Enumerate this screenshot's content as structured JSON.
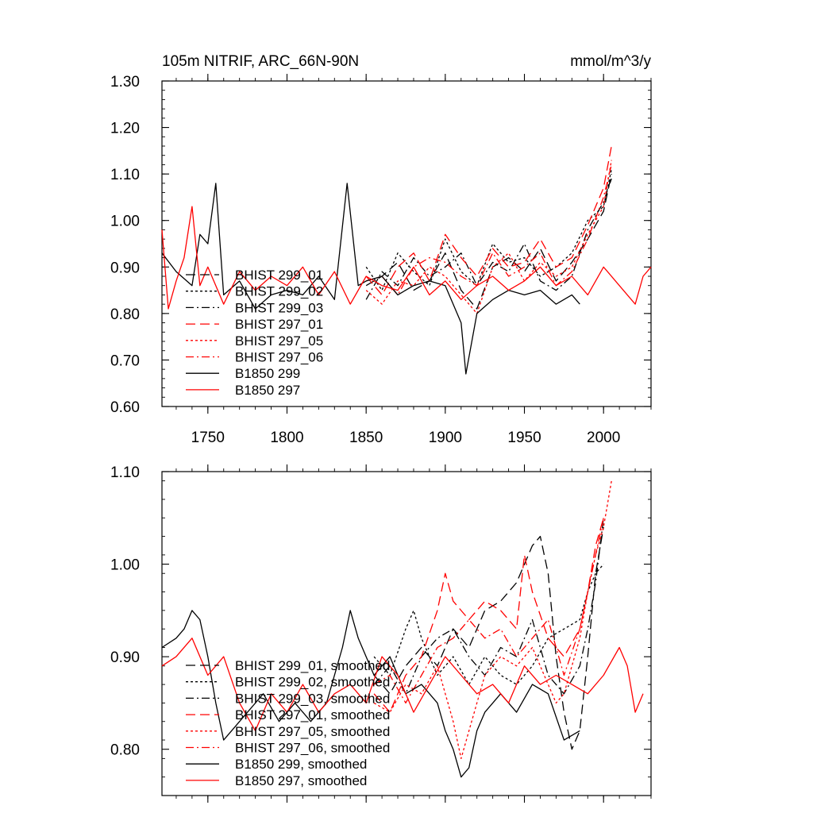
{
  "chart_data": [
    {
      "type": "line",
      "title": "105m NITRIF, ARC_66N-90N",
      "units": "mmol/m^3/y",
      "xlabel": "",
      "ylabel": "",
      "xlim": [
        1721,
        2030
      ],
      "ylim": [
        0.6,
        1.3
      ],
      "xticks": [
        1750,
        1800,
        1850,
        1900,
        1950,
        2000
      ],
      "yticks": [
        0.6,
        0.7,
        0.8,
        0.9,
        1.0,
        1.1,
        1.2,
        1.3
      ],
      "xtick_labels": [
        "1750",
        "1800",
        "1850",
        "1900",
        "1950",
        "2000"
      ],
      "ytick_labels": [
        "0.60",
        "0.70",
        "0.80",
        "0.90",
        "1.00",
        "1.10",
        "1.20",
        "1.30"
      ],
      "legend_position": "bottom-left",
      "series": [
        {
          "name": "BHIST 299_01",
          "color": "#000000",
          "dash": "long-dash",
          "x": [
            1850,
            1860,
            1870,
            1880,
            1890,
            1900,
            1910,
            1920,
            1930,
            1940,
            1950,
            1960,
            1970,
            1980,
            1990,
            2000,
            2005
          ],
          "y": [
            0.86,
            0.88,
            0.91,
            0.85,
            0.87,
            0.93,
            0.85,
            0.81,
            0.9,
            0.92,
            0.89,
            0.94,
            0.87,
            0.91,
            0.96,
            1.02,
            1.1
          ]
        },
        {
          "name": "BHIST 299_02",
          "color": "#000000",
          "dash": "dot",
          "x": [
            1850,
            1860,
            1870,
            1880,
            1890,
            1900,
            1910,
            1920,
            1930,
            1940,
            1950,
            1960,
            1970,
            1980,
            1990,
            2000,
            2005
          ],
          "y": [
            0.9,
            0.85,
            0.93,
            0.89,
            0.86,
            0.96,
            0.89,
            0.86,
            0.95,
            0.91,
            0.92,
            0.88,
            0.9,
            0.93,
            1.0,
            1.03,
            1.11
          ]
        },
        {
          "name": "BHIST 299_03",
          "color": "#000000",
          "dash": "dash-dot",
          "x": [
            1850,
            1860,
            1870,
            1880,
            1890,
            1900,
            1910,
            1920,
            1930,
            1940,
            1950,
            1960,
            1970,
            1980,
            1990,
            2000,
            2005
          ],
          "y": [
            0.83,
            0.89,
            0.86,
            0.92,
            0.88,
            0.9,
            0.93,
            0.86,
            0.91,
            0.89,
            0.95,
            0.87,
            0.85,
            0.88,
            0.98,
            1.04,
            1.09
          ]
        },
        {
          "name": "BHIST 297_01",
          "color": "#ff0000",
          "dash": "long-dash",
          "x": [
            1850,
            1860,
            1870,
            1880,
            1890,
            1900,
            1910,
            1920,
            1930,
            1940,
            1950,
            1960,
            1970,
            1980,
            1990,
            2000,
            2005
          ],
          "y": [
            0.88,
            0.84,
            0.9,
            0.93,
            0.87,
            0.97,
            0.92,
            0.88,
            0.94,
            0.9,
            0.91,
            0.96,
            0.9,
            0.92,
            0.99,
            1.07,
            1.16
          ]
        },
        {
          "name": "BHIST 297_05",
          "color": "#ff0000",
          "dash": "dot",
          "x": [
            1850,
            1860,
            1870,
            1880,
            1890,
            1900,
            1910,
            1920,
            1930,
            1940,
            1950,
            1960,
            1970,
            1980,
            1990,
            2000,
            2005
          ],
          "y": [
            0.85,
            0.82,
            0.87,
            0.86,
            0.9,
            0.88,
            0.84,
            0.8,
            0.9,
            0.93,
            0.87,
            0.91,
            0.88,
            0.9,
            0.97,
            1.03,
            1.13
          ]
        },
        {
          "name": "BHIST 297_06",
          "color": "#ff0000",
          "dash": "dash-dot",
          "x": [
            1850,
            1860,
            1870,
            1880,
            1890,
            1900,
            1910,
            1920,
            1930,
            1940,
            1950,
            1960,
            1970,
            1980,
            1990,
            2000,
            2005
          ],
          "y": [
            0.87,
            0.88,
            0.84,
            0.9,
            0.92,
            0.91,
            0.88,
            0.86,
            0.93,
            0.88,
            0.9,
            0.93,
            0.86,
            0.89,
            0.96,
            1.05,
            1.12
          ]
        },
        {
          "name": "B1850 299",
          "color": "#000000",
          "dash": "solid",
          "x": [
            1721,
            1730,
            1740,
            1745,
            1750,
            1755,
            1760,
            1770,
            1780,
            1790,
            1800,
            1810,
            1820,
            1830,
            1838,
            1845,
            1850,
            1860,
            1870,
            1880,
            1890,
            1900,
            1910,
            1913,
            1920,
            1930,
            1940,
            1950,
            1960,
            1970,
            1980,
            1985
          ],
          "y": [
            0.93,
            0.89,
            0.86,
            0.97,
            0.95,
            1.08,
            0.84,
            0.87,
            0.81,
            0.84,
            0.85,
            0.84,
            0.88,
            0.83,
            1.08,
            0.86,
            0.87,
            0.88,
            0.84,
            0.86,
            0.87,
            0.86,
            0.78,
            0.67,
            0.8,
            0.83,
            0.85,
            0.84,
            0.85,
            0.82,
            0.84,
            0.82
          ]
        },
        {
          "name": "B1850 297",
          "color": "#ff0000",
          "dash": "solid",
          "x": [
            1721,
            1725,
            1730,
            1735,
            1740,
            1745,
            1750,
            1760,
            1770,
            1780,
            1790,
            1800,
            1810,
            1820,
            1830,
            1840,
            1850,
            1860,
            1870,
            1880,
            1890,
            1900,
            1910,
            1920,
            1930,
            1940,
            1950,
            1960,
            1970,
            1980,
            1990,
            2000,
            2010,
            2020,
            2025,
            2030
          ],
          "y": [
            0.98,
            0.81,
            0.87,
            0.92,
            1.03,
            0.86,
            0.9,
            0.82,
            0.89,
            0.85,
            0.88,
            0.86,
            0.9,
            0.84,
            0.89,
            0.82,
            0.88,
            0.86,
            0.85,
            0.9,
            0.84,
            0.87,
            0.83,
            0.86,
            0.88,
            0.85,
            0.87,
            0.9,
            0.86,
            0.88,
            0.84,
            0.9,
            0.86,
            0.82,
            0.88,
            0.9
          ]
        }
      ]
    },
    {
      "type": "line",
      "title": "",
      "xlabel": "",
      "ylabel": "",
      "xlim": [
        1721,
        2030
      ],
      "ylim": [
        0.75,
        1.1
      ],
      "xticks": [
        1750,
        1800,
        1850,
        1900,
        1950,
        2000
      ],
      "yticks": [
        0.8,
        0.9,
        1.0,
        1.1
      ],
      "ytick_labels": [
        "0.80",
        "0.90",
        "1.00",
        "1.10"
      ],
      "legend_position": "bottom-left",
      "series": [
        {
          "name": "BHIST 299_01, smoothed",
          "color": "#000000",
          "dash": "long-dash",
          "x": [
            1855,
            1865,
            1875,
            1885,
            1895,
            1905,
            1915,
            1925,
            1935,
            1945,
            1955,
            1960,
            1965,
            1970,
            1975,
            1980,
            1985,
            1990,
            1995,
            2000
          ],
          "y": [
            0.88,
            0.86,
            0.89,
            0.91,
            0.89,
            0.93,
            0.91,
            0.95,
            0.96,
            0.98,
            1.02,
            1.03,
            0.99,
            0.9,
            0.84,
            0.8,
            0.82,
            0.9,
            0.99,
            1.04
          ]
        },
        {
          "name": "BHIST 299_02, smoothed",
          "color": "#000000",
          "dash": "dot",
          "x": [
            1855,
            1865,
            1875,
            1880,
            1885,
            1895,
            1905,
            1915,
            1925,
            1935,
            1945,
            1955,
            1965,
            1975,
            1985,
            1990,
            1995,
            2000
          ],
          "y": [
            0.9,
            0.88,
            0.93,
            0.95,
            0.92,
            0.88,
            0.9,
            0.87,
            0.9,
            0.88,
            0.87,
            0.89,
            0.92,
            0.93,
            0.94,
            0.97,
            0.99,
            1.0
          ]
        },
        {
          "name": "BHIST 299_03, smoothed",
          "color": "#000000",
          "dash": "dash-dot",
          "x": [
            1855,
            1865,
            1875,
            1885,
            1895,
            1905,
            1915,
            1925,
            1935,
            1945,
            1955,
            1965,
            1975,
            1985,
            1990,
            1995,
            2000
          ],
          "y": [
            0.87,
            0.89,
            0.86,
            0.9,
            0.92,
            0.93,
            0.9,
            0.88,
            0.91,
            0.9,
            0.94,
            0.88,
            0.86,
            0.89,
            0.93,
            0.98,
            1.05
          ]
        },
        {
          "name": "BHIST 297_01, smoothed",
          "color": "#ff0000",
          "dash": "long-dash",
          "x": [
            1855,
            1865,
            1875,
            1885,
            1895,
            1900,
            1905,
            1915,
            1925,
            1935,
            1945,
            1950,
            1955,
            1965,
            1975,
            1985,
            1990,
            1995,
            2000
          ],
          "y": [
            0.86,
            0.84,
            0.88,
            0.9,
            0.95,
            0.99,
            0.96,
            0.94,
            0.96,
            0.95,
            0.93,
            1.01,
            0.97,
            0.92,
            0.9,
            0.93,
            0.97,
            1.02,
            1.05
          ]
        },
        {
          "name": "BHIST 297_05, smoothed",
          "color": "#ff0000",
          "dash": "dot",
          "x": [
            1855,
            1865,
            1875,
            1885,
            1895,
            1905,
            1910,
            1915,
            1925,
            1935,
            1945,
            1955,
            1965,
            1970,
            1975,
            1985,
            1990,
            1995,
            2000,
            2005
          ],
          "y": [
            0.85,
            0.84,
            0.87,
            0.86,
            0.89,
            0.83,
            0.79,
            0.82,
            0.88,
            0.9,
            0.89,
            0.91,
            0.87,
            0.85,
            0.86,
            0.92,
            0.97,
            1.01,
            1.04,
            1.09
          ]
        },
        {
          "name": "BHIST 297_06, smoothed",
          "color": "#ff0000",
          "dash": "dash-dot",
          "x": [
            1855,
            1865,
            1875,
            1885,
            1895,
            1905,
            1915,
            1925,
            1935,
            1945,
            1955,
            1965,
            1975,
            1985,
            1990,
            1995,
            2000
          ],
          "y": [
            0.87,
            0.88,
            0.85,
            0.88,
            0.91,
            0.92,
            0.94,
            0.92,
            0.93,
            0.9,
            0.92,
            0.94,
            0.88,
            0.93,
            0.97,
            1.01,
            1.05
          ]
        },
        {
          "name": "B1850 299, smoothed",
          "color": "#000000",
          "dash": "solid",
          "x": [
            1721,
            1730,
            1735,
            1740,
            1745,
            1750,
            1755,
            1760,
            1765,
            1775,
            1785,
            1795,
            1805,
            1815,
            1825,
            1835,
            1840,
            1845,
            1855,
            1865,
            1875,
            1885,
            1895,
            1900,
            1905,
            1910,
            1915,
            1920,
            1925,
            1935,
            1945,
            1955,
            1965,
            1975,
            1985
          ],
          "y": [
            0.91,
            0.92,
            0.93,
            0.95,
            0.94,
            0.9,
            0.85,
            0.81,
            0.82,
            0.84,
            0.86,
            0.83,
            0.85,
            0.83,
            0.85,
            0.91,
            0.95,
            0.92,
            0.88,
            0.9,
            0.86,
            0.87,
            0.85,
            0.82,
            0.8,
            0.77,
            0.78,
            0.82,
            0.84,
            0.86,
            0.84,
            0.87,
            0.86,
            0.81,
            0.82
          ]
        },
        {
          "name": "B1850 297, smoothed",
          "color": "#ff0000",
          "dash": "solid",
          "x": [
            1721,
            1730,
            1740,
            1750,
            1760,
            1770,
            1780,
            1790,
            1800,
            1810,
            1820,
            1830,
            1840,
            1850,
            1860,
            1870,
            1880,
            1890,
            1900,
            1910,
            1920,
            1930,
            1940,
            1950,
            1960,
            1970,
            1980,
            1990,
            2000,
            2010,
            2015,
            2020,
            2025
          ],
          "y": [
            0.89,
            0.9,
            0.92,
            0.88,
            0.9,
            0.85,
            0.82,
            0.86,
            0.84,
            0.87,
            0.84,
            0.86,
            0.87,
            0.85,
            0.9,
            0.88,
            0.84,
            0.87,
            0.9,
            0.88,
            0.86,
            0.87,
            0.85,
            0.89,
            0.87,
            0.88,
            0.87,
            0.86,
            0.88,
            0.91,
            0.89,
            0.84,
            0.86
          ]
        }
      ]
    }
  ]
}
